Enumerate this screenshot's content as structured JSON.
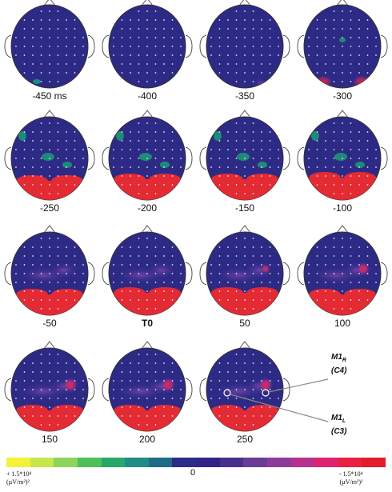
{
  "figure": {
    "time_labels": [
      "-450 ms",
      "-400",
      "-350",
      "-300",
      "-250",
      "-200",
      "-150",
      "-100",
      "-50",
      "T0",
      "50",
      "100",
      "150",
      "200",
      "250"
    ],
    "bold_label": "T0",
    "annotations": {
      "m1r": {
        "line1": "M1",
        "sub1": "R",
        "line2": "(C4)"
      },
      "m1l": {
        "line1": "M1",
        "sub1": "L",
        "line2": "(C3)"
      }
    }
  },
  "colorbar": {
    "left_label_1": "+ 1.5*10⁴",
    "left_label_2": "(µV/m²)²",
    "center_label": "0",
    "right_label_1": "- 1.5*10⁴",
    "right_label_2": "(µV/m²)²",
    "colors": [
      "#f2f23a",
      "#c8e64a",
      "#8fd45a",
      "#4fbf5a",
      "#27a86a",
      "#208c86",
      "#1f6c88",
      "#2a2c86",
      "#332489",
      "#48308c",
      "#6b3c95",
      "#8c3c9a",
      "#b8318f",
      "#de2470",
      "#ea2040",
      "#e21c2a"
    ]
  }
}
